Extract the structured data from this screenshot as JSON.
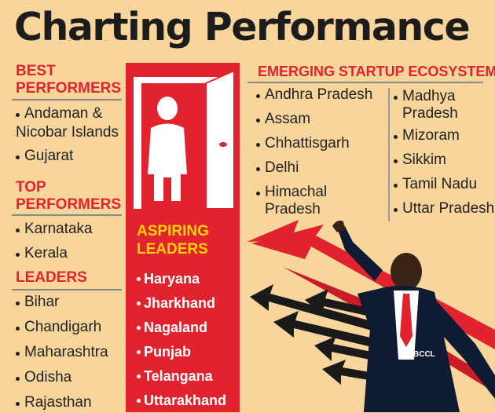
{
  "title": "Charting Performance",
  "best": {
    "heading": [
      "BEST",
      "PERFORMERS"
    ],
    "items": [
      "Andaman &",
      "Nicobar Islands",
      "Gujarat"
    ]
  },
  "top": {
    "heading": [
      "TOP",
      "PERFORMERS"
    ],
    "items": [
      "Karnataka",
      "Kerala"
    ]
  },
  "leaders": {
    "heading": "LEADERS",
    "items": [
      "Bihar",
      "Chandigarh",
      "Maharashtra",
      "Odisha",
      "Rajasthan"
    ]
  },
  "aspiring": {
    "heading": [
      "ASPIRING",
      "LEADERS"
    ],
    "items": [
      "Haryana",
      "Jharkhand",
      "Nagaland",
      "Punjab",
      "Telangana",
      "Uttarakhand"
    ]
  },
  "emerging": {
    "heading": "EMERGING STARTUP ECOSYSTEMS",
    "col1": [
      "Andhra Pradesh",
      "Assam",
      "Chhattisgarh",
      "Delhi",
      "Himachal",
      "Pradesh"
    ],
    "col2": [
      "Madhya",
      "Pradesh",
      "Mizoram",
      "Sikkim",
      "Tamil Nadu",
      "Uttar Pradesh"
    ]
  },
  "credit": "BCCL",
  "colors": {
    "background": "#f8d59a",
    "accent_red": "#e0232f",
    "accent_yellow": "#ffd400",
    "figure_navy": "#0f1a33"
  },
  "icons": [
    "door-figure-icon",
    "arrows-illustration",
    "businessman-illustration"
  ]
}
